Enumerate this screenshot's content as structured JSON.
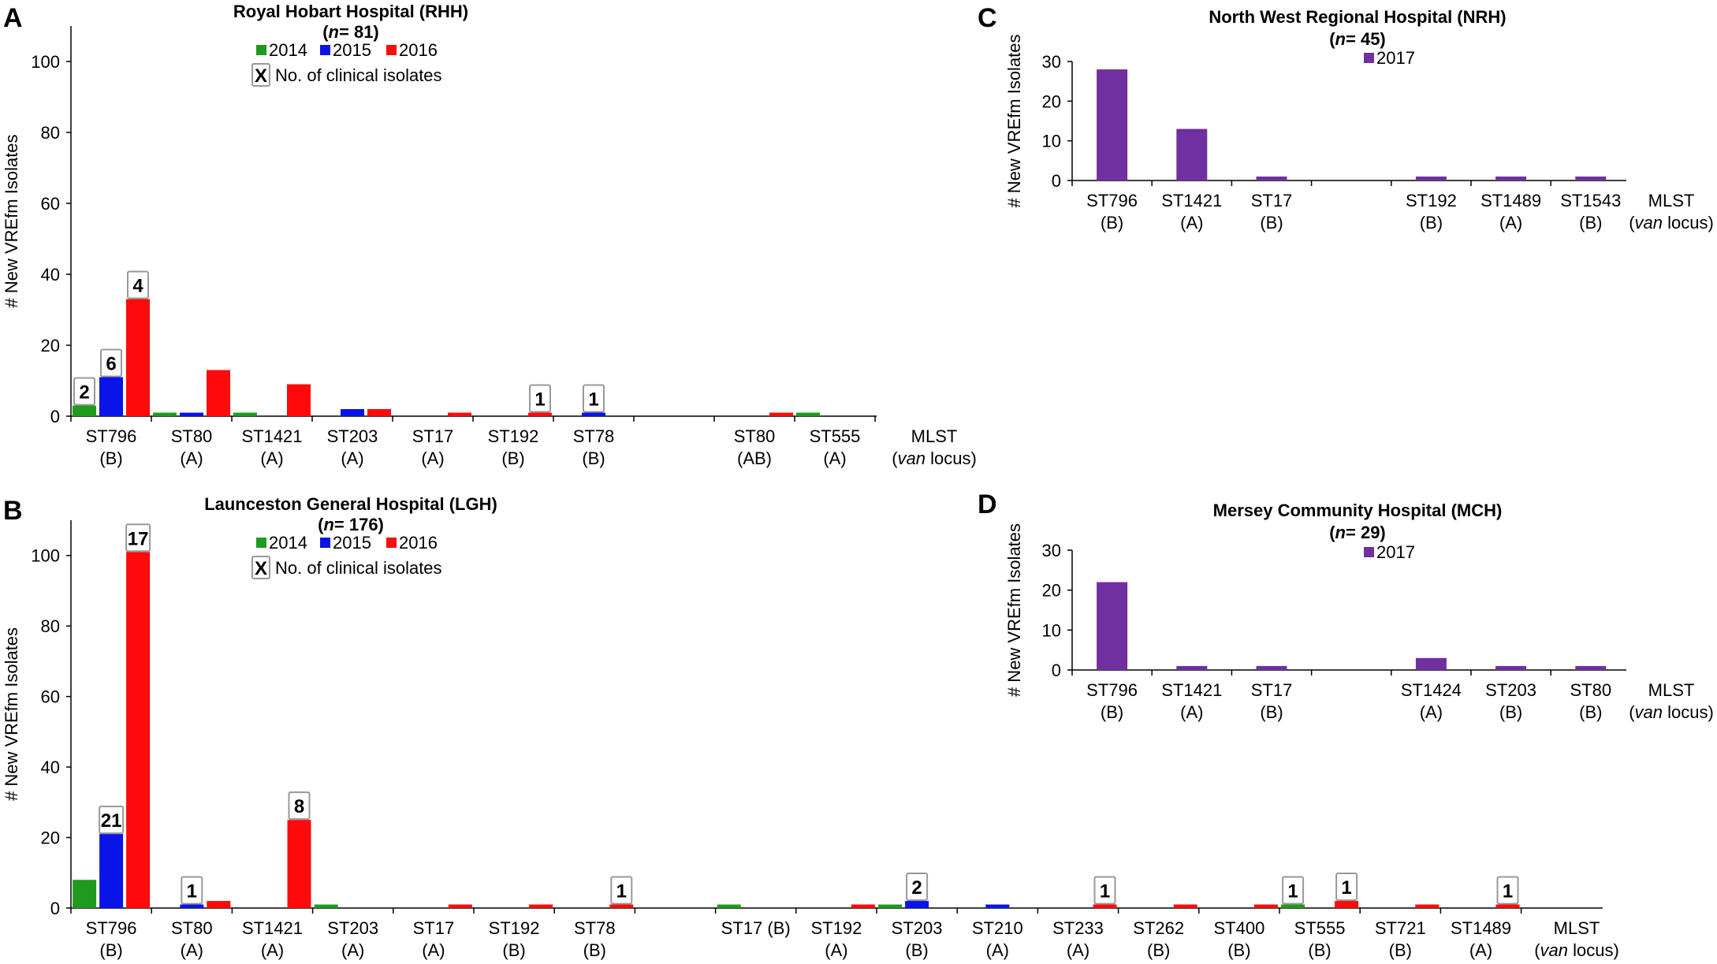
{
  "chart_data": [
    {
      "panel": "A",
      "type": "bar",
      "title": "Royal Hobart Hospital (RHH)",
      "subtitle": {
        "prefix": "(",
        "italic": "n",
        "suffix": "= 81)"
      },
      "ylabel": "# New VREfm Isolates",
      "xlabel": {
        "line1": "MLST",
        "line2_open": "(",
        "line2_italic": "van",
        "line2_rest": " locus)"
      },
      "ylim": [
        0,
        110
      ],
      "yticks": [
        0,
        20,
        40,
        60,
        80,
        100
      ],
      "legend": [
        {
          "name": "2014",
          "color": "#1f9a1f"
        },
        {
          "name": "2015",
          "color": "#0a14e6"
        },
        {
          "name": "2016",
          "color": "#ff0a0a"
        }
      ],
      "legend_note": {
        "box": "X",
        "text": "No. of clinical isolates"
      },
      "categories": [
        {
          "st": "ST796",
          "locus": "(B)"
        },
        {
          "st": "ST80",
          "locus": "(A)"
        },
        {
          "st": "ST1421",
          "locus": "(A)"
        },
        {
          "st": "ST203",
          "locus": "(A)"
        },
        {
          "st": "ST17",
          "locus": "(A)"
        },
        {
          "st": "ST192",
          "locus": "(B)"
        },
        {
          "st": "ST78",
          "locus": "(B)"
        },
        {
          "st": "",
          "locus": ""
        },
        {
          "st": "ST80",
          "locus": "(AB)"
        },
        {
          "st": "ST555",
          "locus": "(A)"
        }
      ],
      "series": [
        {
          "name": "2014",
          "values": [
            3,
            1,
            1,
            0,
            0,
            0,
            0,
            0,
            0,
            1
          ]
        },
        {
          "name": "2015",
          "values": [
            11,
            1,
            0,
            2,
            0,
            0,
            1,
            0,
            0,
            0
          ]
        },
        {
          "name": "2016",
          "values": [
            33,
            13,
            9,
            2,
            1,
            1,
            0,
            0,
            1,
            0
          ]
        }
      ],
      "annotations": [
        {
          "cat": 0,
          "series": 0,
          "label": "2"
        },
        {
          "cat": 0,
          "series": 1,
          "label": "6"
        },
        {
          "cat": 0,
          "series": 2,
          "label": "4"
        },
        {
          "cat": 5,
          "series": 2,
          "label": "1"
        },
        {
          "cat": 6,
          "series": 1,
          "label": "1"
        }
      ]
    },
    {
      "panel": "B",
      "type": "bar",
      "title": "Launceston General Hospital (LGH)",
      "subtitle": {
        "prefix": "(",
        "italic": "n",
        "suffix": "= 176)"
      },
      "ylabel": "# New VREfm Isolates",
      "xlabel": {
        "line1": "MLST",
        "line2_open": "(",
        "line2_italic": "van",
        "line2_rest": " locus)"
      },
      "ylim": [
        0,
        110
      ],
      "yticks": [
        0,
        20,
        40,
        60,
        80,
        100
      ],
      "legend": [
        {
          "name": "2014",
          "color": "#1f9a1f"
        },
        {
          "name": "2015",
          "color": "#0a14e6"
        },
        {
          "name": "2016",
          "color": "#ff0a0a"
        }
      ],
      "legend_note": {
        "box": "X",
        "text": "No. of clinical isolates"
      },
      "categories": [
        {
          "st": "ST796",
          "locus": "(B)"
        },
        {
          "st": "ST80",
          "locus": "(A)"
        },
        {
          "st": "ST1421",
          "locus": "(A)"
        },
        {
          "st": "ST203",
          "locus": "(A)"
        },
        {
          "st": "ST17",
          "locus": "(A)"
        },
        {
          "st": "ST192",
          "locus": "(B)"
        },
        {
          "st": "ST78",
          "locus": "(B)"
        },
        {
          "st": "",
          "locus": ""
        },
        {
          "st": "ST17 (B)",
          "locus": ""
        },
        {
          "st": "ST192",
          "locus": "(A)"
        },
        {
          "st": "ST203",
          "locus": "(B)"
        },
        {
          "st": "ST210",
          "locus": "(A)"
        },
        {
          "st": "ST233",
          "locus": "(A)"
        },
        {
          "st": "ST262",
          "locus": "(B)"
        },
        {
          "st": "ST400",
          "locus": "(B)"
        },
        {
          "st": "ST555",
          "locus": "(B)"
        },
        {
          "st": "ST721",
          "locus": "(B)"
        },
        {
          "st": "ST1489",
          "locus": "(A)"
        }
      ],
      "series": [
        {
          "name": "2014",
          "values": [
            8,
            0,
            0,
            1,
            0,
            0,
            0,
            0,
            1,
            0,
            1,
            0,
            0,
            0,
            0,
            1,
            0,
            0
          ]
        },
        {
          "name": "2015",
          "values": [
            21,
            1,
            0,
            0,
            0,
            0,
            0,
            0,
            0,
            0,
            2,
            1,
            0,
            0,
            0,
            0,
            0,
            0
          ]
        },
        {
          "name": "2016",
          "values": [
            101,
            2,
            25,
            0,
            1,
            1,
            1,
            0,
            0,
            1,
            0,
            0,
            1,
            1,
            1,
            2,
            1,
            1
          ]
        }
      ],
      "annotations": [
        {
          "cat": 0,
          "series": 1,
          "label": "21"
        },
        {
          "cat": 0,
          "series": 2,
          "label": "17"
        },
        {
          "cat": 1,
          "series": 1,
          "label": "1"
        },
        {
          "cat": 2,
          "series": 2,
          "label": "8"
        },
        {
          "cat": 6,
          "series": 2,
          "label": "1"
        },
        {
          "cat": 10,
          "series": 1,
          "label": "2"
        },
        {
          "cat": 12,
          "series": 2,
          "label": "1"
        },
        {
          "cat": 15,
          "series": 0,
          "label": "1"
        },
        {
          "cat": 15,
          "series": 2,
          "label": "1"
        },
        {
          "cat": 17,
          "series": 2,
          "label": "1"
        }
      ]
    },
    {
      "panel": "C",
      "type": "bar",
      "title": "North West Regional Hospital (NRH)",
      "subtitle": {
        "prefix": "(",
        "italic": "n",
        "suffix": "= 45)"
      },
      "ylabel": "# New VREfm Isolates",
      "xlabel": {
        "line1": "MLST",
        "line2_open": "(",
        "line2_italic": "van",
        "line2_rest": " locus)"
      },
      "ylim": [
        0,
        30
      ],
      "yticks": [
        0,
        10,
        20,
        30
      ],
      "legend": [
        {
          "name": "2017",
          "color": "#7030a0"
        }
      ],
      "categories": [
        {
          "st": "ST796",
          "locus": "(B)"
        },
        {
          "st": "ST1421",
          "locus": "(A)"
        },
        {
          "st": "ST17",
          "locus": "(B)"
        },
        {
          "st": "",
          "locus": ""
        },
        {
          "st": "ST192",
          "locus": "(B)"
        },
        {
          "st": "ST1489",
          "locus": "(A)"
        },
        {
          "st": "ST1543",
          "locus": "(B)"
        }
      ],
      "series": [
        {
          "name": "2017",
          "values": [
            28,
            13,
            1,
            0,
            1,
            1,
            1
          ]
        }
      ],
      "annotations": []
    },
    {
      "panel": "D",
      "type": "bar",
      "title": "Mersey Community Hospital (MCH)",
      "subtitle": {
        "prefix": "(",
        "italic": "n",
        "suffix": "= 29)"
      },
      "ylabel": "# New VREfm Isolates",
      "xlabel": {
        "line1": "MLST",
        "line2_open": "(",
        "line2_italic": "van",
        "line2_rest": " locus)"
      },
      "ylim": [
        0,
        30
      ],
      "yticks": [
        0,
        10,
        20,
        30
      ],
      "legend": [
        {
          "name": "2017",
          "color": "#7030a0"
        }
      ],
      "categories": [
        {
          "st": "ST796",
          "locus": "(B)"
        },
        {
          "st": "ST1421",
          "locus": "(A)"
        },
        {
          "st": "ST17",
          "locus": "(B)"
        },
        {
          "st": "",
          "locus": ""
        },
        {
          "st": "ST1424",
          "locus": "(A)"
        },
        {
          "st": "ST203",
          "locus": "(B)"
        },
        {
          "st": "ST80",
          "locus": "(B)"
        }
      ],
      "series": [
        {
          "name": "2017",
          "values": [
            22,
            1,
            1,
            0,
            3,
            1,
            1
          ]
        }
      ],
      "annotations": []
    }
  ]
}
